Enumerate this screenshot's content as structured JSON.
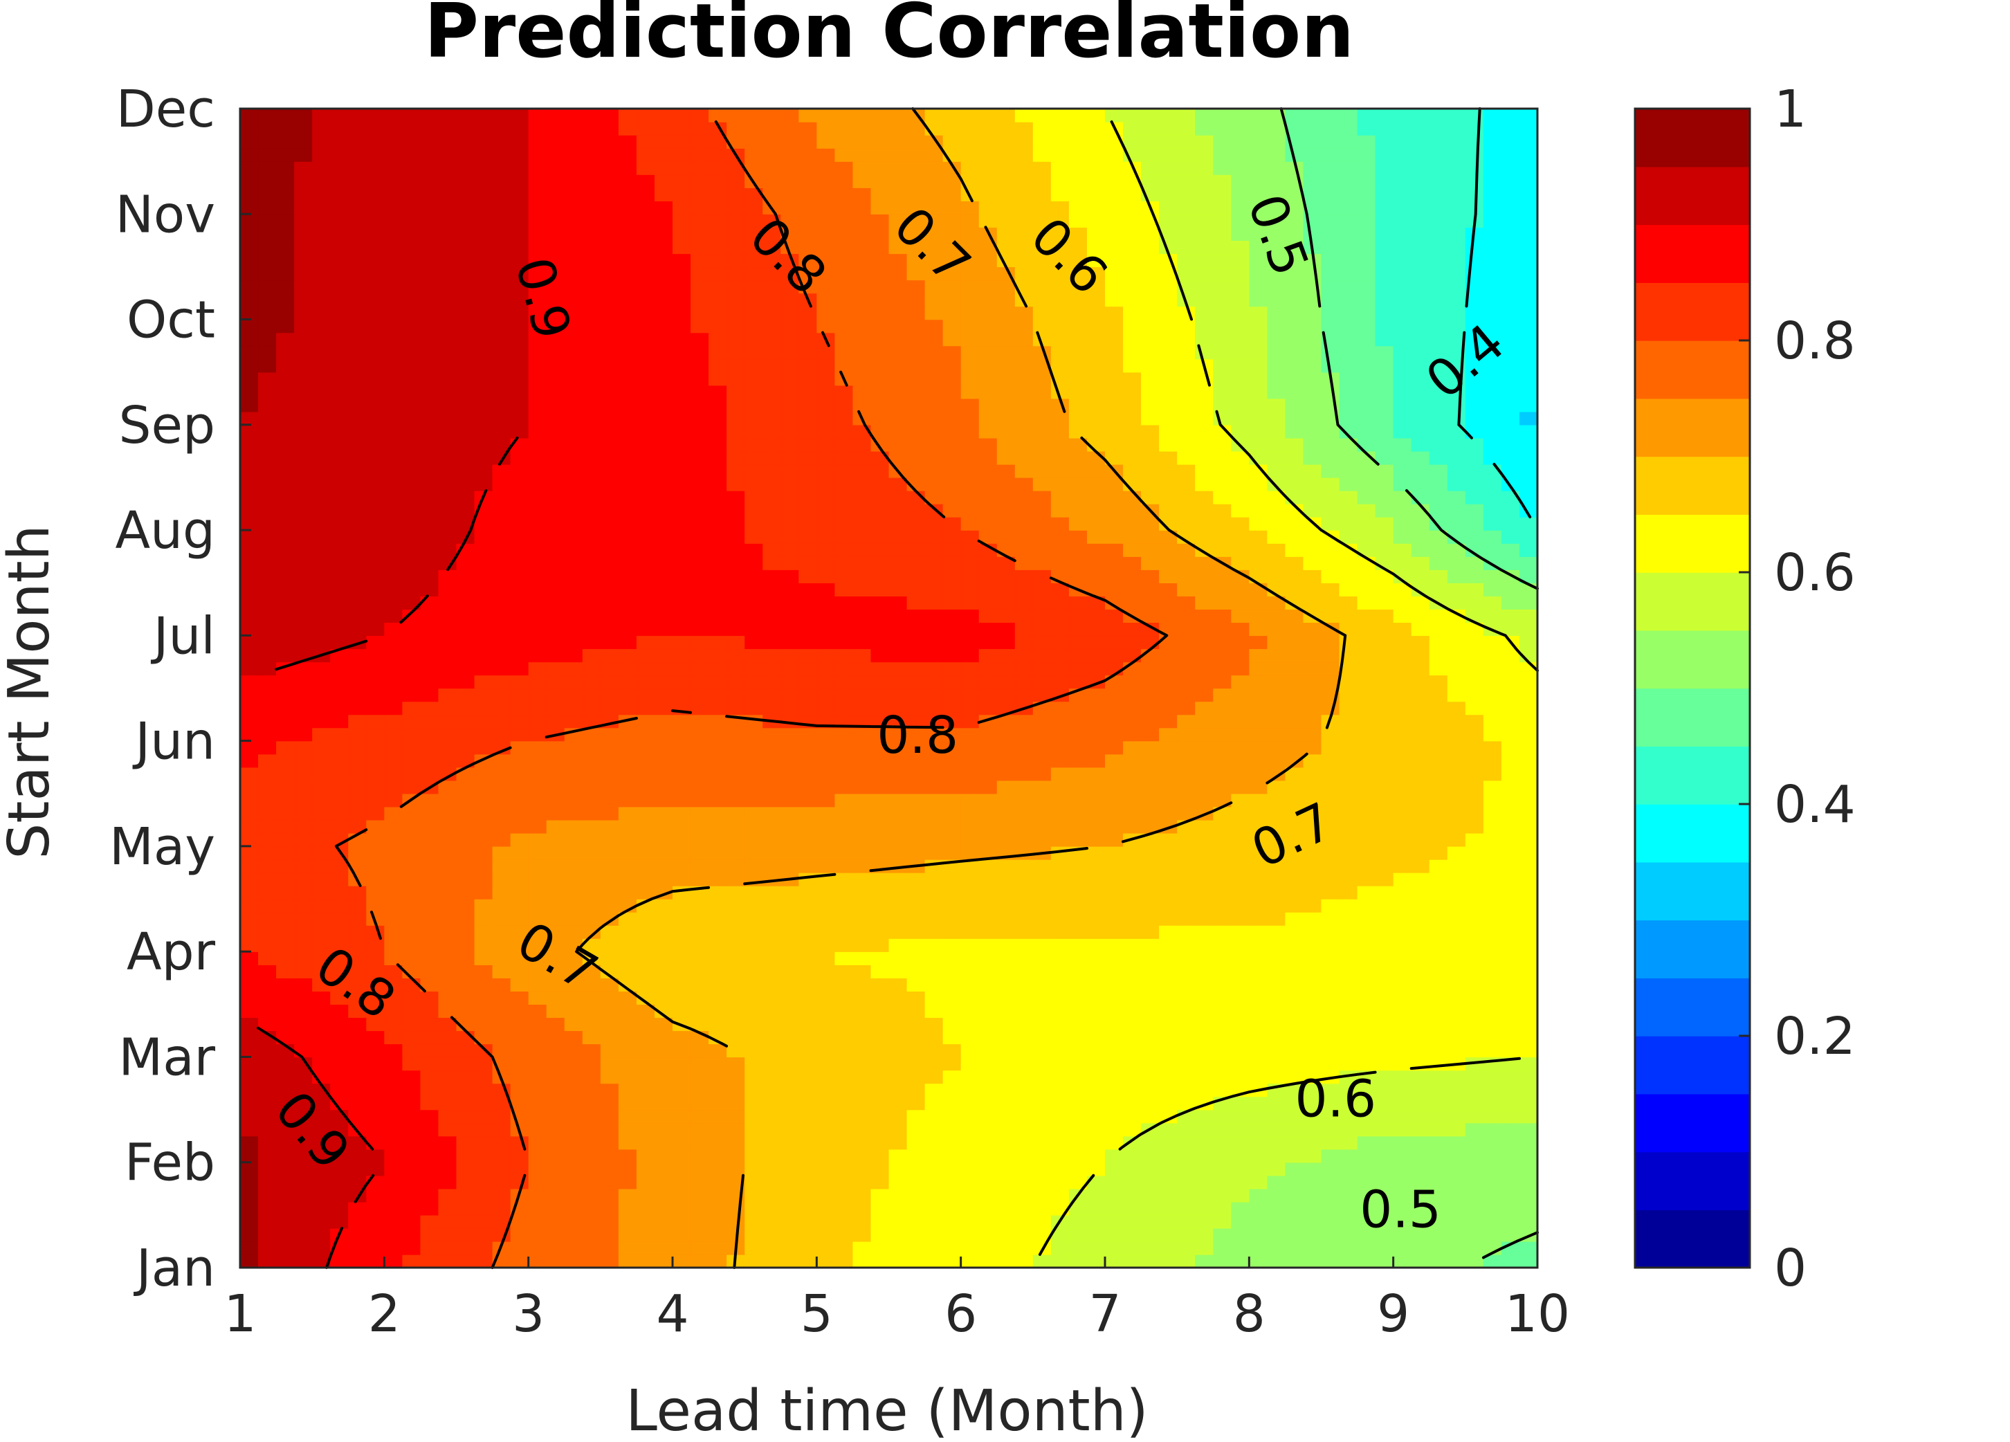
{
  "chart_data": {
    "type": "heatmap",
    "title": "Prediction Correlation",
    "xlabel": "Lead time (Month)",
    "ylabel": "Start Month",
    "x_ticks": [
      "1",
      "2",
      "3",
      "4",
      "5",
      "6",
      "7",
      "8",
      "9",
      "10"
    ],
    "xlim": [
      1,
      10
    ],
    "y_ticks": [
      "Jan",
      "Feb",
      "Mar",
      "Apr",
      "May",
      "Jun",
      "Jul",
      "Aug",
      "Sep",
      "Oct",
      "Nov",
      "Dec"
    ],
    "colorbar": {
      "range": [
        0,
        1
      ],
      "ticks": [
        "0",
        "0.2",
        "0.4",
        "0.6",
        "0.8",
        "1"
      ],
      "levels": 20,
      "colormap": "jet"
    },
    "contour_labels": [
      "0.9",
      "0.8",
      "0.7",
      "0.6",
      "0.5",
      "0.4",
      "0.8",
      "0.7",
      "0.8",
      "0.9",
      "0.7",
      "0.6",
      "0.5"
    ],
    "x": [
      1,
      2,
      3,
      4,
      5,
      6,
      7,
      8,
      9,
      10
    ],
    "y": [
      "Jan",
      "Feb",
      "Mar",
      "Apr",
      "May",
      "Jun",
      "Jul",
      "Aug",
      "Sep",
      "Oct",
      "Nov",
      "Dec"
    ],
    "z": [
      [
        0.96,
        0.86,
        0.78,
        0.73,
        0.66,
        0.62,
        0.58,
        0.53,
        0.51,
        0.49
      ],
      [
        0.96,
        0.9,
        0.8,
        0.73,
        0.67,
        0.63,
        0.6,
        0.56,
        0.53,
        0.52
      ],
      [
        0.93,
        0.86,
        0.78,
        0.72,
        0.68,
        0.65,
        0.63,
        0.62,
        0.61,
        0.6
      ],
      [
        0.85,
        0.8,
        0.72,
        0.66,
        0.65,
        0.64,
        0.64,
        0.64,
        0.63,
        0.6
      ],
      [
        0.82,
        0.79,
        0.74,
        0.73,
        0.72,
        0.71,
        0.7,
        0.68,
        0.66,
        0.64
      ],
      [
        0.86,
        0.83,
        0.8,
        0.78,
        0.79,
        0.79,
        0.76,
        0.72,
        0.68,
        0.64
      ],
      [
        0.93,
        0.9,
        0.87,
        0.85,
        0.86,
        0.87,
        0.83,
        0.76,
        0.67,
        0.58
      ],
      [
        0.94,
        0.93,
        0.88,
        0.86,
        0.84,
        0.8,
        0.74,
        0.65,
        0.55,
        0.4
      ],
      [
        0.95,
        0.93,
        0.9,
        0.87,
        0.82,
        0.76,
        0.68,
        0.58,
        0.45,
        0.34
      ],
      [
        0.96,
        0.93,
        0.9,
        0.86,
        0.8,
        0.74,
        0.66,
        0.56,
        0.44,
        0.36
      ],
      [
        0.96,
        0.93,
        0.9,
        0.85,
        0.78,
        0.71,
        0.63,
        0.54,
        0.44,
        0.37
      ],
      [
        0.97,
        0.93,
        0.9,
        0.82,
        0.74,
        0.68,
        0.6,
        0.52,
        0.43,
        0.38
      ]
    ]
  }
}
